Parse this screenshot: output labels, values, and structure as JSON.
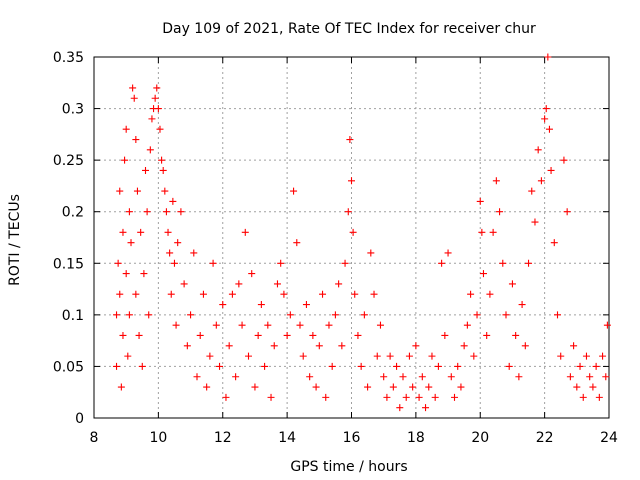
{
  "chart_data": {
    "type": "scatter",
    "title": "Day 109 of 2021, Rate Of TEC Index for receiver chur",
    "xlabel": "GPS time / hours",
    "ylabel": "ROTI / TECUs",
    "xlim": [
      8,
      24
    ],
    "ylim": [
      0,
      0.35
    ],
    "xticks": [
      8,
      10,
      12,
      14,
      16,
      18,
      20,
      22,
      24
    ],
    "xtick_labels": [
      "8",
      "10",
      "12",
      "14",
      "16",
      "18",
      "20",
      "22",
      "24"
    ],
    "yticks": [
      0,
      0.05,
      0.1,
      0.15,
      0.2,
      0.25,
      0.3,
      0.35
    ],
    "ytick_labels": [
      "0",
      "0.05",
      "0.1",
      "0.15",
      "0.2",
      "0.25",
      "0.3",
      "0.35"
    ],
    "grid": true,
    "marker": "+",
    "color": "#ff0000",
    "series": [
      {
        "name": "ROTI",
        "points": [
          [
            8.7,
            0.05
          ],
          [
            8.7,
            0.1
          ],
          [
            8.75,
            0.15
          ],
          [
            8.8,
            0.22
          ],
          [
            8.8,
            0.12
          ],
          [
            8.85,
            0.03
          ],
          [
            8.9,
            0.18
          ],
          [
            8.9,
            0.08
          ],
          [
            8.95,
            0.25
          ],
          [
            9.0,
            0.28
          ],
          [
            9.0,
            0.14
          ],
          [
            9.05,
            0.06
          ],
          [
            9.1,
            0.2
          ],
          [
            9.1,
            0.1
          ],
          [
            9.15,
            0.17
          ],
          [
            9.2,
            0.32
          ],
          [
            9.25,
            0.31
          ],
          [
            9.3,
            0.27
          ],
          [
            9.3,
            0.12
          ],
          [
            9.35,
            0.22
          ],
          [
            9.4,
            0.08
          ],
          [
            9.45,
            0.18
          ],
          [
            9.5,
            0.05
          ],
          [
            9.55,
            0.14
          ],
          [
            9.6,
            0.24
          ],
          [
            9.65,
            0.2
          ],
          [
            9.7,
            0.1
          ],
          [
            9.75,
            0.26
          ],
          [
            9.8,
            0.29
          ],
          [
            9.85,
            0.3
          ],
          [
            9.9,
            0.31
          ],
          [
            9.95,
            0.32
          ],
          [
            10.0,
            0.3
          ],
          [
            10.05,
            0.28
          ],
          [
            10.1,
            0.25
          ],
          [
            10.15,
            0.24
          ],
          [
            10.2,
            0.22
          ],
          [
            10.25,
            0.2
          ],
          [
            10.3,
            0.18
          ],
          [
            10.35,
            0.16
          ],
          [
            10.4,
            0.12
          ],
          [
            10.45,
            0.21
          ],
          [
            10.5,
            0.15
          ],
          [
            10.55,
            0.09
          ],
          [
            10.6,
            0.17
          ],
          [
            10.7,
            0.2
          ],
          [
            10.8,
            0.13
          ],
          [
            10.9,
            0.07
          ],
          [
            11.0,
            0.1
          ],
          [
            11.1,
            0.16
          ],
          [
            11.2,
            0.04
          ],
          [
            11.3,
            0.08
          ],
          [
            11.4,
            0.12
          ],
          [
            11.5,
            0.03
          ],
          [
            11.6,
            0.06
          ],
          [
            11.7,
            0.15
          ],
          [
            11.8,
            0.09
          ],
          [
            11.9,
            0.05
          ],
          [
            12.0,
            0.11
          ],
          [
            12.1,
            0.02
          ],
          [
            12.2,
            0.07
          ],
          [
            12.3,
            0.12
          ],
          [
            12.4,
            0.04
          ],
          [
            12.5,
            0.13
          ],
          [
            12.6,
            0.09
          ],
          [
            12.7,
            0.18
          ],
          [
            12.8,
            0.06
          ],
          [
            12.9,
            0.14
          ],
          [
            13.0,
            0.03
          ],
          [
            13.1,
            0.08
          ],
          [
            13.2,
            0.11
          ],
          [
            13.3,
            0.05
          ],
          [
            13.4,
            0.09
          ],
          [
            13.5,
            0.02
          ],
          [
            13.6,
            0.07
          ],
          [
            13.7,
            0.13
          ],
          [
            13.8,
            0.15
          ],
          [
            13.9,
            0.12
          ],
          [
            14.0,
            0.08
          ],
          [
            14.1,
            0.1
          ],
          [
            14.2,
            0.22
          ],
          [
            14.3,
            0.17
          ],
          [
            14.4,
            0.09
          ],
          [
            14.5,
            0.06
          ],
          [
            14.6,
            0.11
          ],
          [
            14.7,
            0.04
          ],
          [
            14.8,
            0.08
          ],
          [
            14.9,
            0.03
          ],
          [
            15.0,
            0.07
          ],
          [
            15.1,
            0.12
          ],
          [
            15.2,
            0.02
          ],
          [
            15.3,
            0.09
          ],
          [
            15.4,
            0.05
          ],
          [
            15.5,
            0.1
          ],
          [
            15.6,
            0.13
          ],
          [
            15.7,
            0.07
          ],
          [
            15.8,
            0.15
          ],
          [
            15.9,
            0.2
          ],
          [
            15.95,
            0.27
          ],
          [
            16.0,
            0.23
          ],
          [
            16.05,
            0.18
          ],
          [
            16.1,
            0.12
          ],
          [
            16.2,
            0.08
          ],
          [
            16.3,
            0.05
          ],
          [
            16.4,
            0.1
          ],
          [
            16.5,
            0.03
          ],
          [
            16.6,
            0.16
          ],
          [
            16.7,
            0.12
          ],
          [
            16.8,
            0.06
          ],
          [
            16.9,
            0.09
          ],
          [
            17.0,
            0.04
          ],
          [
            17.1,
            0.02
          ],
          [
            17.2,
            0.06
          ],
          [
            17.3,
            0.03
          ],
          [
            17.4,
            0.05
          ],
          [
            17.5,
            0.01
          ],
          [
            17.6,
            0.04
          ],
          [
            17.7,
            0.02
          ],
          [
            17.8,
            0.06
          ],
          [
            17.9,
            0.03
          ],
          [
            18.0,
            0.07
          ],
          [
            18.1,
            0.02
          ],
          [
            18.2,
            0.04
          ],
          [
            18.3,
            0.01
          ],
          [
            18.4,
            0.03
          ],
          [
            18.5,
            0.06
          ],
          [
            18.6,
            0.02
          ],
          [
            18.7,
            0.05
          ],
          [
            18.8,
            0.15
          ],
          [
            18.9,
            0.08
          ],
          [
            19.0,
            0.16
          ],
          [
            19.1,
            0.04
          ],
          [
            19.2,
            0.02
          ],
          [
            19.3,
            0.05
          ],
          [
            19.4,
            0.03
          ],
          [
            19.5,
            0.07
          ],
          [
            19.6,
            0.09
          ],
          [
            19.7,
            0.12
          ],
          [
            19.8,
            0.06
          ],
          [
            19.9,
            0.1
          ],
          [
            20.0,
            0.21
          ],
          [
            20.05,
            0.18
          ],
          [
            20.1,
            0.14
          ],
          [
            20.2,
            0.08
          ],
          [
            20.3,
            0.12
          ],
          [
            20.4,
            0.18
          ],
          [
            20.5,
            0.23
          ],
          [
            20.6,
            0.2
          ],
          [
            20.7,
            0.15
          ],
          [
            20.8,
            0.1
          ],
          [
            20.9,
            0.05
          ],
          [
            21.0,
            0.13
          ],
          [
            21.1,
            0.08
          ],
          [
            21.2,
            0.04
          ],
          [
            21.3,
            0.11
          ],
          [
            21.4,
            0.07
          ],
          [
            21.5,
            0.15
          ],
          [
            21.6,
            0.22
          ],
          [
            21.7,
            0.19
          ],
          [
            21.8,
            0.26
          ],
          [
            21.9,
            0.23
          ],
          [
            22.0,
            0.29
          ],
          [
            22.05,
            0.3
          ],
          [
            22.1,
            0.35
          ],
          [
            22.15,
            0.28
          ],
          [
            22.2,
            0.24
          ],
          [
            22.3,
            0.17
          ],
          [
            22.4,
            0.1
          ],
          [
            22.5,
            0.06
          ],
          [
            22.6,
            0.25
          ],
          [
            22.7,
            0.2
          ],
          [
            22.8,
            0.04
          ],
          [
            22.9,
            0.07
          ],
          [
            23.0,
            0.03
          ],
          [
            23.1,
            0.05
          ],
          [
            23.2,
            0.02
          ],
          [
            23.3,
            0.06
          ],
          [
            23.4,
            0.04
          ],
          [
            23.5,
            0.03
          ],
          [
            23.6,
            0.05
          ],
          [
            23.7,
            0.02
          ],
          [
            23.8,
            0.06
          ],
          [
            23.9,
            0.04
          ],
          [
            23.95,
            0.09
          ]
        ]
      }
    ]
  }
}
